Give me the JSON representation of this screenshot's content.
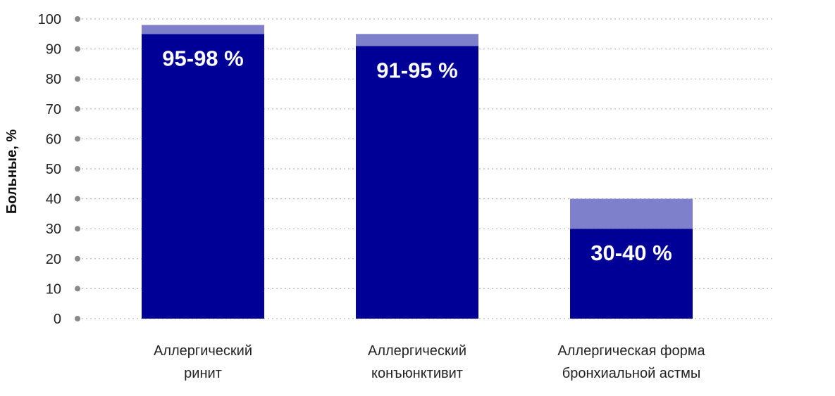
{
  "chart_data": {
    "type": "bar",
    "ylabel": "Больные, %",
    "xlabel": "",
    "ylim": [
      0,
      100
    ],
    "yticks": [
      0,
      10,
      20,
      30,
      40,
      50,
      60,
      70,
      80,
      90,
      100
    ],
    "grid": true,
    "categories": [
      [
        "Аллергический",
        "ринит"
      ],
      [
        "Аллергический",
        "конъюнктивит"
      ],
      [
        "Аллергическая форма",
        "бронхиальной астмы"
      ]
    ],
    "series": [
      {
        "values": [
          95,
          91,
          30
        ]
      },
      {
        "values": [
          3,
          4,
          10
        ]
      }
    ],
    "range_low": [
      95,
      91,
      30
    ],
    "range_high": [
      98,
      95,
      40
    ],
    "data_labels": [
      "95-98 %",
      "91-95 %",
      "30-40 %"
    ],
    "colors": {
      "base": "#000096",
      "range": "#7f80cb"
    }
  }
}
